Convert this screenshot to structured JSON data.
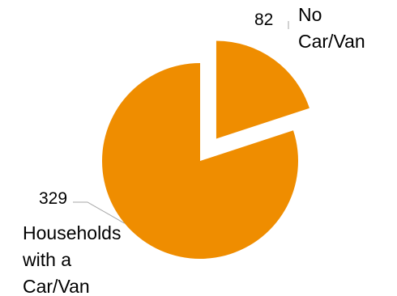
{
  "chart_data": {
    "type": "pie",
    "title": "",
    "categories": [
      "No Car/Van",
      "Households with a Car/Van"
    ],
    "values": [
      82,
      329
    ],
    "colors": [
      "#EF8D00",
      "#EF8D00"
    ],
    "exploded": [
      true,
      false
    ],
    "label_lines": [
      [
        "No",
        "Car/Van"
      ],
      [
        "Households",
        "with a",
        "Car/Van"
      ]
    ],
    "value_labels": [
      "82",
      "329"
    ],
    "legend": "none"
  }
}
